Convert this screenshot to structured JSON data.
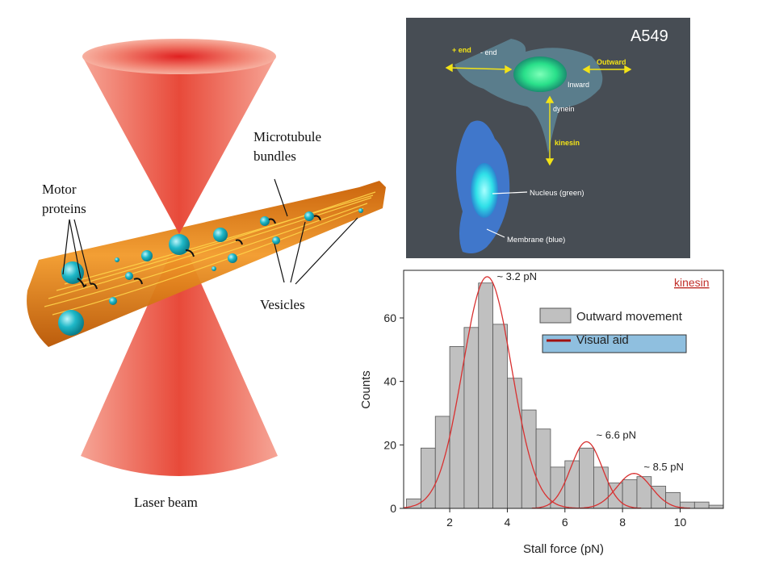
{
  "diagram": {
    "labels": {
      "microtubule": [
        "Microtubule",
        "bundles"
      ],
      "motor": [
        "Motor",
        "proteins"
      ],
      "vesicles": "Vesicles",
      "laser": "Laser beam"
    },
    "colors": {
      "laser": "#e03030",
      "bundle": "#d9780e",
      "vesicle": "#1fb8c8"
    }
  },
  "micrograph": {
    "cell_line": "A549",
    "labels": {
      "plus_end": "+ end",
      "minus_end": "- end",
      "outward": "Outward",
      "inward": "Inward",
      "dynein": "dynein",
      "kinesin": "kinesin",
      "nucleus": "Nucleus (green)",
      "membrane": "Membrane (blue)"
    },
    "colors": {
      "background": "#454b52",
      "nucleus": "#29e08a",
      "membrane": "#3f7fe0",
      "arrow": "#f2e317"
    }
  },
  "chart_data": {
    "type": "bar",
    "xlabel": "Stall force (pN)",
    "ylabel": "Counts",
    "xlim": [
      0.4,
      11.5
    ],
    "ylim": [
      0,
      75
    ],
    "xticks": [
      2,
      4,
      6,
      8,
      10
    ],
    "yticks": [
      0,
      20,
      40,
      60
    ],
    "bin_width": 0.5,
    "bins": [
      {
        "x": 0.75,
        "count": 3
      },
      {
        "x": 1.25,
        "count": 19
      },
      {
        "x": 1.75,
        "count": 29
      },
      {
        "x": 2.25,
        "count": 51
      },
      {
        "x": 2.75,
        "count": 57
      },
      {
        "x": 3.25,
        "count": 71
      },
      {
        "x": 3.75,
        "count": 58
      },
      {
        "x": 4.25,
        "count": 41
      },
      {
        "x": 4.75,
        "count": 31
      },
      {
        "x": 5.25,
        "count": 25
      },
      {
        "x": 5.75,
        "count": 13
      },
      {
        "x": 6.25,
        "count": 15
      },
      {
        "x": 6.75,
        "count": 19
      },
      {
        "x": 7.25,
        "count": 13
      },
      {
        "x": 7.75,
        "count": 8
      },
      {
        "x": 8.25,
        "count": 9
      },
      {
        "x": 8.75,
        "count": 10
      },
      {
        "x": 9.25,
        "count": 7
      },
      {
        "x": 9.75,
        "count": 5
      },
      {
        "x": 10.25,
        "count": 2
      },
      {
        "x": 10.75,
        "count": 2
      },
      {
        "x": 11.25,
        "count": 1
      }
    ],
    "fits": [
      {
        "mu": 3.3,
        "sigma": 0.85,
        "amp": 73
      },
      {
        "mu": 6.75,
        "sigma": 0.55,
        "amp": 21
      },
      {
        "mu": 8.4,
        "sigma": 0.6,
        "amp": 11
      }
    ],
    "peak_annotations": [
      {
        "text": "~ 3.2 pN",
        "x": 3.3,
        "y": 73
      },
      {
        "text": "~ 6.6 pN",
        "x": 6.75,
        "y": 23
      },
      {
        "text": "~ 8.5 pN",
        "x": 8.4,
        "y": 13
      }
    ],
    "legend": [
      {
        "name": "Outward movement",
        "color": "#c0c0c0"
      },
      {
        "name": "Visual aid",
        "color": "#a01010"
      }
    ],
    "overlay_label": "kinesin",
    "colors": {
      "bar": "#c0c0c0",
      "fit": "#d83030",
      "overlay_label": "#c0302a",
      "highlight_box": "#8fbfdf"
    }
  }
}
